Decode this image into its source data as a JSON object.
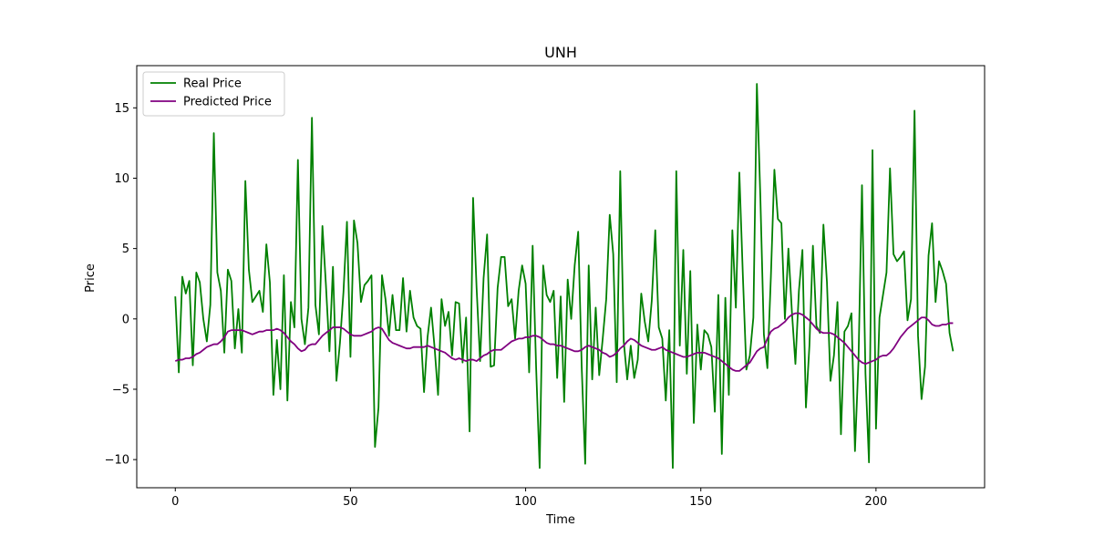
{
  "chart_data": {
    "type": "line",
    "title": "UNH",
    "xlabel": "Time",
    "ylabel": "Price",
    "xlim": [
      -11,
      231
    ],
    "ylim": [
      -12.0,
      18.0
    ],
    "xticks": [
      0,
      50,
      100,
      150,
      200
    ],
    "yticks": [
      -10,
      -5,
      0,
      5,
      10,
      15
    ],
    "grid": false,
    "legend_position": "top-left",
    "series": [
      {
        "name": "Real Price",
        "color": "#008000",
        "x_start": 0,
        "x_step": 1,
        "values": [
          1.6,
          -3.8,
          3.0,
          1.8,
          2.7,
          -3.3,
          3.3,
          2.6,
          0.0,
          -1.6,
          1.0,
          13.2,
          3.3,
          2.0,
          -2.4,
          3.5,
          2.7,
          -2.1,
          0.7,
          -2.4,
          9.8,
          3.5,
          1.2,
          1.6,
          2.0,
          0.5,
          5.3,
          2.6,
          -5.4,
          -1.5,
          -5.0,
          3.1,
          -5.8,
          1.2,
          -0.6,
          11.3,
          0.0,
          -1.8,
          0.8,
          14.3,
          1.0,
          -1.1,
          6.6,
          2.4,
          -2.3,
          3.7,
          -4.4,
          -1.7,
          1.9,
          6.9,
          -2.7,
          7.0,
          5.4,
          1.2,
          2.4,
          2.7,
          3.1,
          -9.1,
          -6.3,
          3.1,
          1.4,
          -1.2,
          1.7,
          -0.8,
          -0.8,
          2.9,
          -0.9,
          2.0,
          0.1,
          -0.5,
          -0.7,
          -5.2,
          -1.3,
          0.8,
          -2.0,
          -5.4,
          1.4,
          -0.5,
          0.5,
          -2.6,
          1.2,
          1.1,
          -3.1,
          0.1,
          -8.0,
          8.6,
          2.2,
          -3.0,
          2.9,
          6.0,
          -3.4,
          -3.3,
          2.2,
          4.4,
          4.4,
          0.9,
          1.4,
          -1.4,
          2.0,
          3.8,
          2.5,
          -3.8,
          5.2,
          -3.5,
          -10.6,
          3.8,
          1.7,
          1.2,
          2.0,
          -4.2,
          1.6,
          -5.9,
          2.8,
          0.0,
          3.8,
          6.2,
          -3.4,
          -10.3,
          3.8,
          -4.3,
          0.8,
          -4.0,
          -1.4,
          1.4,
          7.4,
          4.6,
          -4.5,
          10.5,
          -1.6,
          -4.3,
          -1.9,
          -4.2,
          -2.9,
          1.8,
          -0.2,
          -1.6,
          1.3,
          6.3,
          -0.6,
          -1.4,
          -5.8,
          -0.8,
          -10.6,
          10.5,
          -1.9,
          4.9,
          -3.9,
          3.4,
          -7.4,
          -0.4,
          -3.6,
          -0.8,
          -1.1,
          -2.0,
          -6.6,
          1.7,
          -9.6,
          1.5,
          -5.4,
          6.3,
          0.8,
          10.4,
          3.1,
          -3.6,
          -2.6,
          0.1,
          16.7,
          8.6,
          -1.1,
          -3.5,
          3.0,
          10.6,
          7.1,
          6.8,
          0.0,
          5.0,
          0.5,
          -3.2,
          2.0,
          4.9,
          -6.3,
          -1.9,
          5.2,
          -0.5,
          -1.0,
          6.7,
          2.6,
          -4.4,
          -2.6,
          1.2,
          -8.2,
          -0.9,
          -0.5,
          0.4,
          -9.4,
          -3.0,
          9.5,
          -3.9,
          -10.2,
          12.0,
          -7.8,
          0.1,
          1.7,
          3.3,
          10.7,
          4.6,
          4.1,
          4.4,
          4.8,
          -0.1,
          1.4,
          14.8,
          -1.2,
          -5.7,
          -3.4,
          4.5,
          6.8,
          1.2,
          4.1,
          3.4,
          2.5,
          -1.0,
          -2.3
        ]
      },
      {
        "name": "Predicted Price",
        "color": "#800080",
        "x_start": 0,
        "x_step": 1,
        "values": [
          -3.0,
          -2.9,
          -2.9,
          -2.8,
          -2.8,
          -2.7,
          -2.5,
          -2.4,
          -2.2,
          -2.0,
          -1.9,
          -1.8,
          -1.8,
          -1.6,
          -1.3,
          -0.9,
          -0.8,
          -0.8,
          -0.8,
          -0.8,
          -0.9,
          -1.0,
          -1.1,
          -1.0,
          -0.9,
          -0.9,
          -0.8,
          -0.8,
          -0.8,
          -0.7,
          -0.8,
          -1.0,
          -1.3,
          -1.6,
          -1.8,
          -2.1,
          -2.3,
          -2.2,
          -1.9,
          -1.8,
          -1.8,
          -1.5,
          -1.2,
          -1.0,
          -0.8,
          -0.6,
          -0.6,
          -0.6,
          -0.7,
          -0.9,
          -1.1,
          -1.2,
          -1.2,
          -1.2,
          -1.1,
          -1.0,
          -0.9,
          -0.7,
          -0.6,
          -0.7,
          -1.1,
          -1.5,
          -1.7,
          -1.8,
          -1.9,
          -2.0,
          -2.1,
          -2.1,
          -2.0,
          -2.0,
          -2.0,
          -2.0,
          -1.9,
          -2.0,
          -2.1,
          -2.2,
          -2.3,
          -2.4,
          -2.6,
          -2.8,
          -2.9,
          -2.8,
          -2.9,
          -3.0,
          -2.9,
          -2.9,
          -3.0,
          -2.8,
          -2.6,
          -2.5,
          -2.3,
          -2.2,
          -2.2,
          -2.2,
          -2.0,
          -1.8,
          -1.6,
          -1.5,
          -1.4,
          -1.4,
          -1.3,
          -1.3,
          -1.2,
          -1.2,
          -1.3,
          -1.5,
          -1.7,
          -1.8,
          -1.8,
          -1.9,
          -1.9,
          -2.0,
          -2.1,
          -2.2,
          -2.3,
          -2.3,
          -2.2,
          -2.0,
          -1.9,
          -2.0,
          -2.1,
          -2.2,
          -2.4,
          -2.5,
          -2.7,
          -2.6,
          -2.4,
          -2.1,
          -1.9,
          -1.6,
          -1.4,
          -1.5,
          -1.7,
          -1.9,
          -2.0,
          -2.1,
          -2.2,
          -2.2,
          -2.1,
          -2.0,
          -2.2,
          -2.3,
          -2.4,
          -2.5,
          -2.6,
          -2.7,
          -2.7,
          -2.6,
          -2.5,
          -2.4,
          -2.4,
          -2.4,
          -2.5,
          -2.6,
          -2.7,
          -2.8,
          -3.0,
          -3.2,
          -3.4,
          -3.6,
          -3.7,
          -3.7,
          -3.5,
          -3.3,
          -3.1,
          -2.7,
          -2.3,
          -2.1,
          -2.0,
          -1.4,
          -0.9,
          -0.7,
          -0.6,
          -0.4,
          -0.2,
          0.1,
          0.3,
          0.4,
          0.4,
          0.3,
          0.1,
          -0.1,
          -0.4,
          -0.7,
          -0.9,
          -1.0,
          -1.0,
          -1.0,
          -1.1,
          -1.3,
          -1.5,
          -1.7,
          -2.0,
          -2.3,
          -2.6,
          -2.9,
          -3.1,
          -3.2,
          -3.1,
          -3.0,
          -2.9,
          -2.7,
          -2.6,
          -2.6,
          -2.4,
          -2.1,
          -1.7,
          -1.3,
          -1.0,
          -0.7,
          -0.5,
          -0.3,
          -0.1,
          0.1,
          0.1,
          -0.1,
          -0.4,
          -0.5,
          -0.5,
          -0.4,
          -0.4,
          -0.3,
          -0.3
        ]
      }
    ]
  }
}
